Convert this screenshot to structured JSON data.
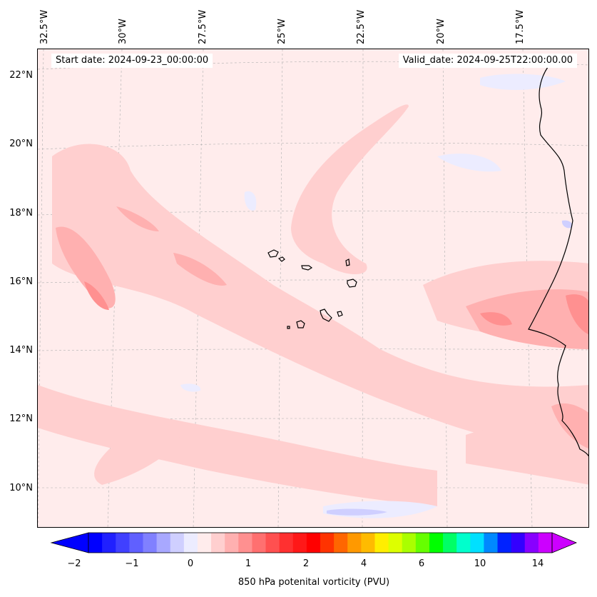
{
  "header": {
    "start_date": "Start date: 2024-09-23_00:00:00",
    "valid_date": "Valid_date: 2024-09-25T22:00:00.00"
  },
  "map": {
    "lon_labels": [
      "32.5°W",
      "30°W",
      "27.5°W",
      "25°W",
      "22.5°W",
      "20°W",
      "17.5°W"
    ],
    "lat_labels": [
      "22°N",
      "20°N",
      "18°N",
      "16°N",
      "14°N",
      "12°N",
      "10°N"
    ],
    "background_color": "#ffecec",
    "gridlines": true,
    "coastline_color": "#000000"
  },
  "colorbar": {
    "label": "850 hPa potenital vorticity (PVU)",
    "tick_labels": [
      "−2",
      "−1",
      "0",
      "1",
      "2",
      "4",
      "6",
      "10",
      "14"
    ],
    "colors": [
      "#0000ff",
      "#2020ff",
      "#4040ff",
      "#6060ff",
      "#8080ff",
      "#a8a8ff",
      "#cfcfff",
      "#ececff",
      "#ffecec",
      "#ffcfcf",
      "#ffb0b0",
      "#ff9090",
      "#ff7070",
      "#ff5050",
      "#ff3030",
      "#ff1818",
      "#ff0000",
      "#ff3300",
      "#ff6600",
      "#ff9900",
      "#ffbb00",
      "#ffee00",
      "#ddff00",
      "#aaff00",
      "#66ff00",
      "#00ff00",
      "#00ff66",
      "#00ffcc",
      "#00e0ff",
      "#0088ff",
      "#0022ff",
      "#3300ff",
      "#8800ff",
      "#cc00ff"
    ],
    "extend": "both"
  }
}
